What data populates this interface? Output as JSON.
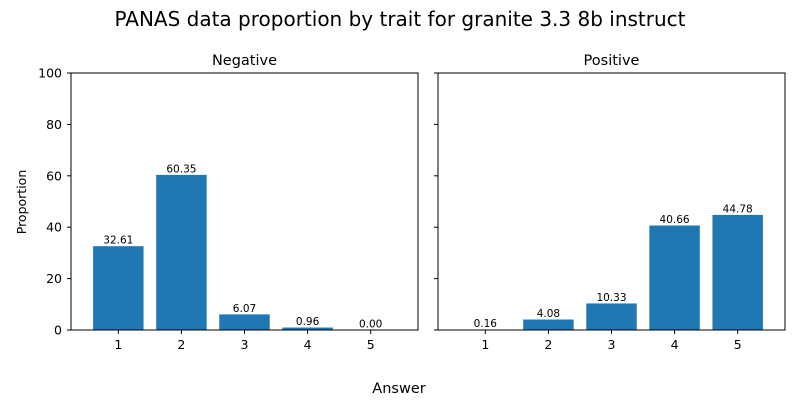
{
  "figure": {
    "title": "PANAS data proportion by trait for granite 3.3 8b instruct",
    "xlabel": "Answer",
    "ylabel": "Proportion"
  },
  "chart_data": [
    {
      "type": "bar",
      "title": "Negative",
      "categories": [
        "1",
        "2",
        "3",
        "4",
        "5"
      ],
      "values": [
        32.61,
        60.35,
        6.07,
        0.96,
        0.0
      ],
      "data_labels": [
        "32.61",
        "60.35",
        "6.07",
        "0.96",
        "0.00"
      ],
      "xlabel": "Answer",
      "ylabel": "Proportion",
      "ylim": [
        0,
        100
      ],
      "yticks": [
        0,
        20,
        40,
        60,
        80,
        100
      ],
      "bar_color": "#1f77b4",
      "grid": false
    },
    {
      "type": "bar",
      "title": "Positive",
      "categories": [
        "1",
        "2",
        "3",
        "4",
        "5"
      ],
      "values": [
        0.16,
        4.08,
        10.33,
        40.66,
        44.78
      ],
      "data_labels": [
        "0.16",
        "4.08",
        "10.33",
        "40.66",
        "44.78"
      ],
      "xlabel": "Answer",
      "ylabel": "",
      "ylim": [
        0,
        100
      ],
      "yticks": [
        0,
        20,
        40,
        60,
        80,
        100
      ],
      "bar_color": "#1f77b4",
      "grid": false,
      "shared_y": true
    }
  ]
}
